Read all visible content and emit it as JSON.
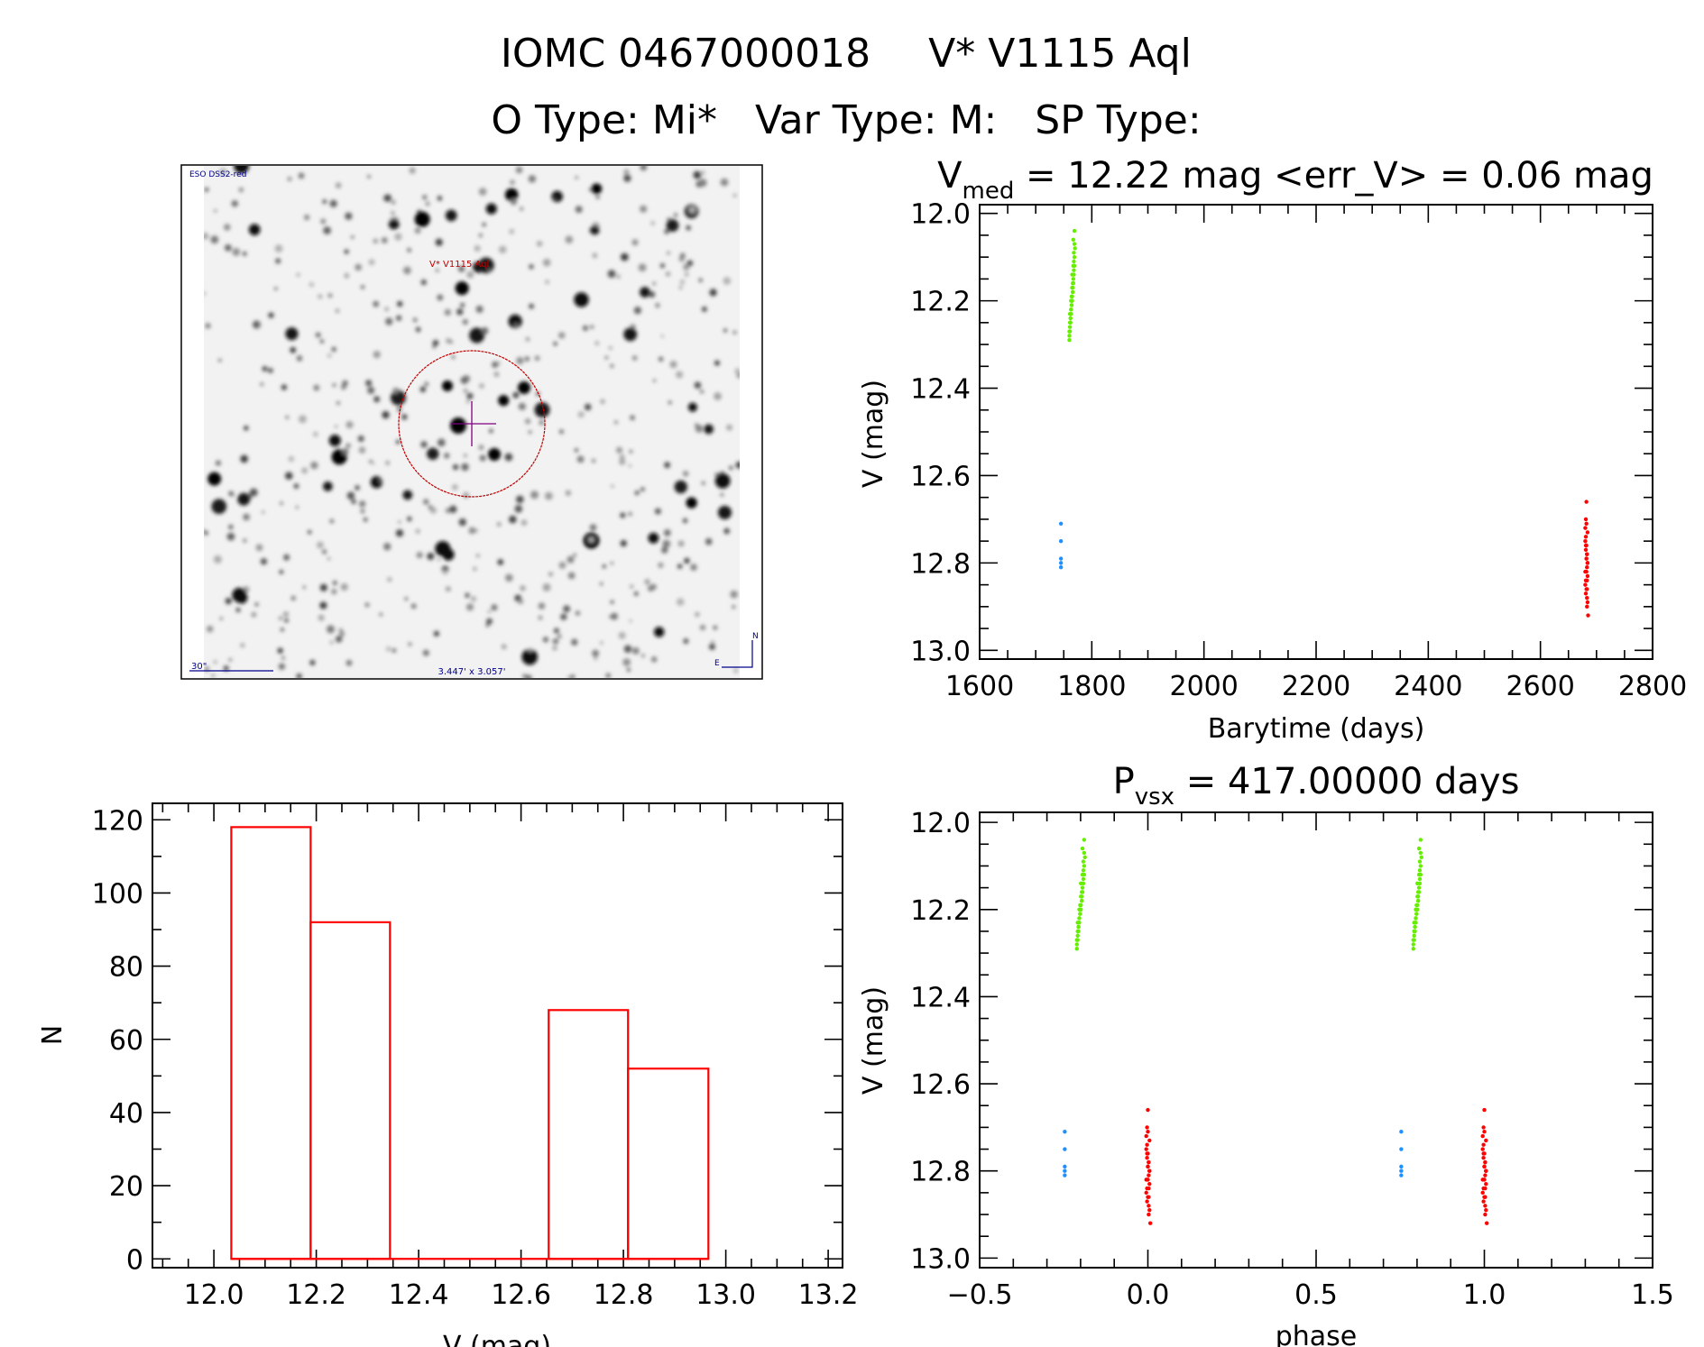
{
  "header": {
    "line1_id": "IOMC 0467000018",
    "line1_name": "V* V1115 Aql",
    "line2": "O Type: Mi*   Var Type: M:   SP Type:"
  },
  "finder": {
    "survey_label": "ESO DSS2-red",
    "target_label": "V* V1115 Aql",
    "scale_label": "30\"",
    "fov_label": "3.447' x 3.057'",
    "north_label": "N",
    "east_label": "E",
    "circle_color": "#c00000",
    "crosshair_color": "#800080"
  },
  "colors": {
    "green": "#66ee00",
    "blue": "#1e90ff",
    "red": "#ff0000",
    "hist": "#ff0000"
  },
  "chart_data": [
    {
      "id": "lightcurve",
      "type": "scatter",
      "title_prefix": "V",
      "title_sub": "med",
      "title_rest": " = 12.22 mag <err_V> = 0.06 mag",
      "xlabel": "Barytime (days)",
      "ylabel": "V (mag)",
      "xlim": [
        1600,
        2800
      ],
      "ylim": [
        11.98,
        13.02
      ],
      "y_inverted": true,
      "xticks": [
        1600,
        1800,
        2000,
        2200,
        2400,
        2600,
        2800
      ],
      "yticks": [
        "12.0",
        "12.2",
        "12.4",
        "12.6",
        "12.8",
        "13.0"
      ],
      "series": [
        {
          "name": "green",
          "t": [
            1760,
            1761,
            1762,
            1763,
            1764,
            1765,
            1766,
            1767,
            1768,
            1769,
            1761,
            1763,
            1765,
            1767,
            1769,
            1762,
            1764,
            1766,
            1768,
            1760,
            1762,
            1764,
            1766,
            1768,
            1770,
            1761,
            1763,
            1765,
            1767,
            1769,
            1760,
            1762,
            1764,
            1766,
            1768,
            1761,
            1763,
            1765,
            1767,
            1769
          ],
          "v": [
            12.29,
            12.27,
            12.25,
            12.23,
            12.21,
            12.2,
            12.18,
            12.16,
            12.14,
            12.12,
            12.26,
            12.22,
            12.19,
            12.15,
            12.1,
            12.24,
            12.2,
            12.17,
            12.13,
            12.28,
            12.23,
            12.21,
            12.18,
            12.11,
            12.08,
            12.25,
            12.22,
            12.17,
            12.12,
            12.07,
            12.27,
            12.24,
            12.19,
            12.16,
            12.09,
            12.23,
            12.2,
            12.14,
            12.06,
            12.04
          ]
        },
        {
          "name": "blue",
          "t": [
            1745,
            1745,
            1745,
            1745,
            1745
          ],
          "v": [
            12.71,
            12.75,
            12.79,
            12.8,
            12.81
          ]
        },
        {
          "name": "red",
          "t": [
            2680,
            2681,
            2682,
            2683,
            2684,
            2680,
            2681,
            2682,
            2683,
            2684,
            2680,
            2681,
            2682,
            2683,
            2684,
            2680,
            2681,
            2682,
            2683,
            2684,
            2681,
            2682,
            2683,
            2684,
            2685,
            2681,
            2682,
            2683,
            2682,
            2683
          ],
          "v": [
            12.72,
            12.74,
            12.76,
            12.78,
            12.8,
            12.82,
            12.84,
            12.86,
            12.88,
            12.73,
            12.75,
            12.77,
            12.79,
            12.81,
            12.83,
            12.85,
            12.87,
            12.71,
            12.78,
            12.8,
            12.76,
            12.82,
            12.84,
            12.89,
            12.92,
            12.7,
            12.66,
            12.9,
            12.79,
            12.86
          ]
        }
      ]
    },
    {
      "id": "histogram",
      "type": "bar",
      "xlabel": "V (mag)",
      "ylabel": "N",
      "xlim": [
        11.88,
        13.228
      ],
      "ylim": [
        -2.4,
        124.5
      ],
      "xticks": [
        "12.0",
        "12.2",
        "12.4",
        "12.6",
        "12.8",
        "13.0",
        "13.2"
      ],
      "yticks": [
        "0",
        "20",
        "40",
        "60",
        "80",
        "100",
        "120"
      ],
      "bin_edges": [
        12.034,
        12.189,
        12.344,
        12.499,
        12.654,
        12.809,
        12.966
      ],
      "counts": [
        118,
        92,
        0,
        0,
        68,
        52
      ]
    },
    {
      "id": "phased",
      "type": "scatter",
      "title_prefix": "P",
      "title_sub": "vsx",
      "title_rest": " = 417.00000 days",
      "period": 417.0,
      "epoch": 2682,
      "xlabel": "phase",
      "ylabel": "V (mag)",
      "xlim": [
        -0.5,
        1.5
      ],
      "ylim": [
        11.977,
        13.022
      ],
      "y_inverted": true,
      "xticks": [
        "−0.5",
        "0.0",
        "0.5",
        "1.0",
        "1.5"
      ],
      "yticks": [
        "12.0",
        "12.2",
        "12.4",
        "12.6",
        "12.8",
        "13.0"
      ]
    }
  ]
}
